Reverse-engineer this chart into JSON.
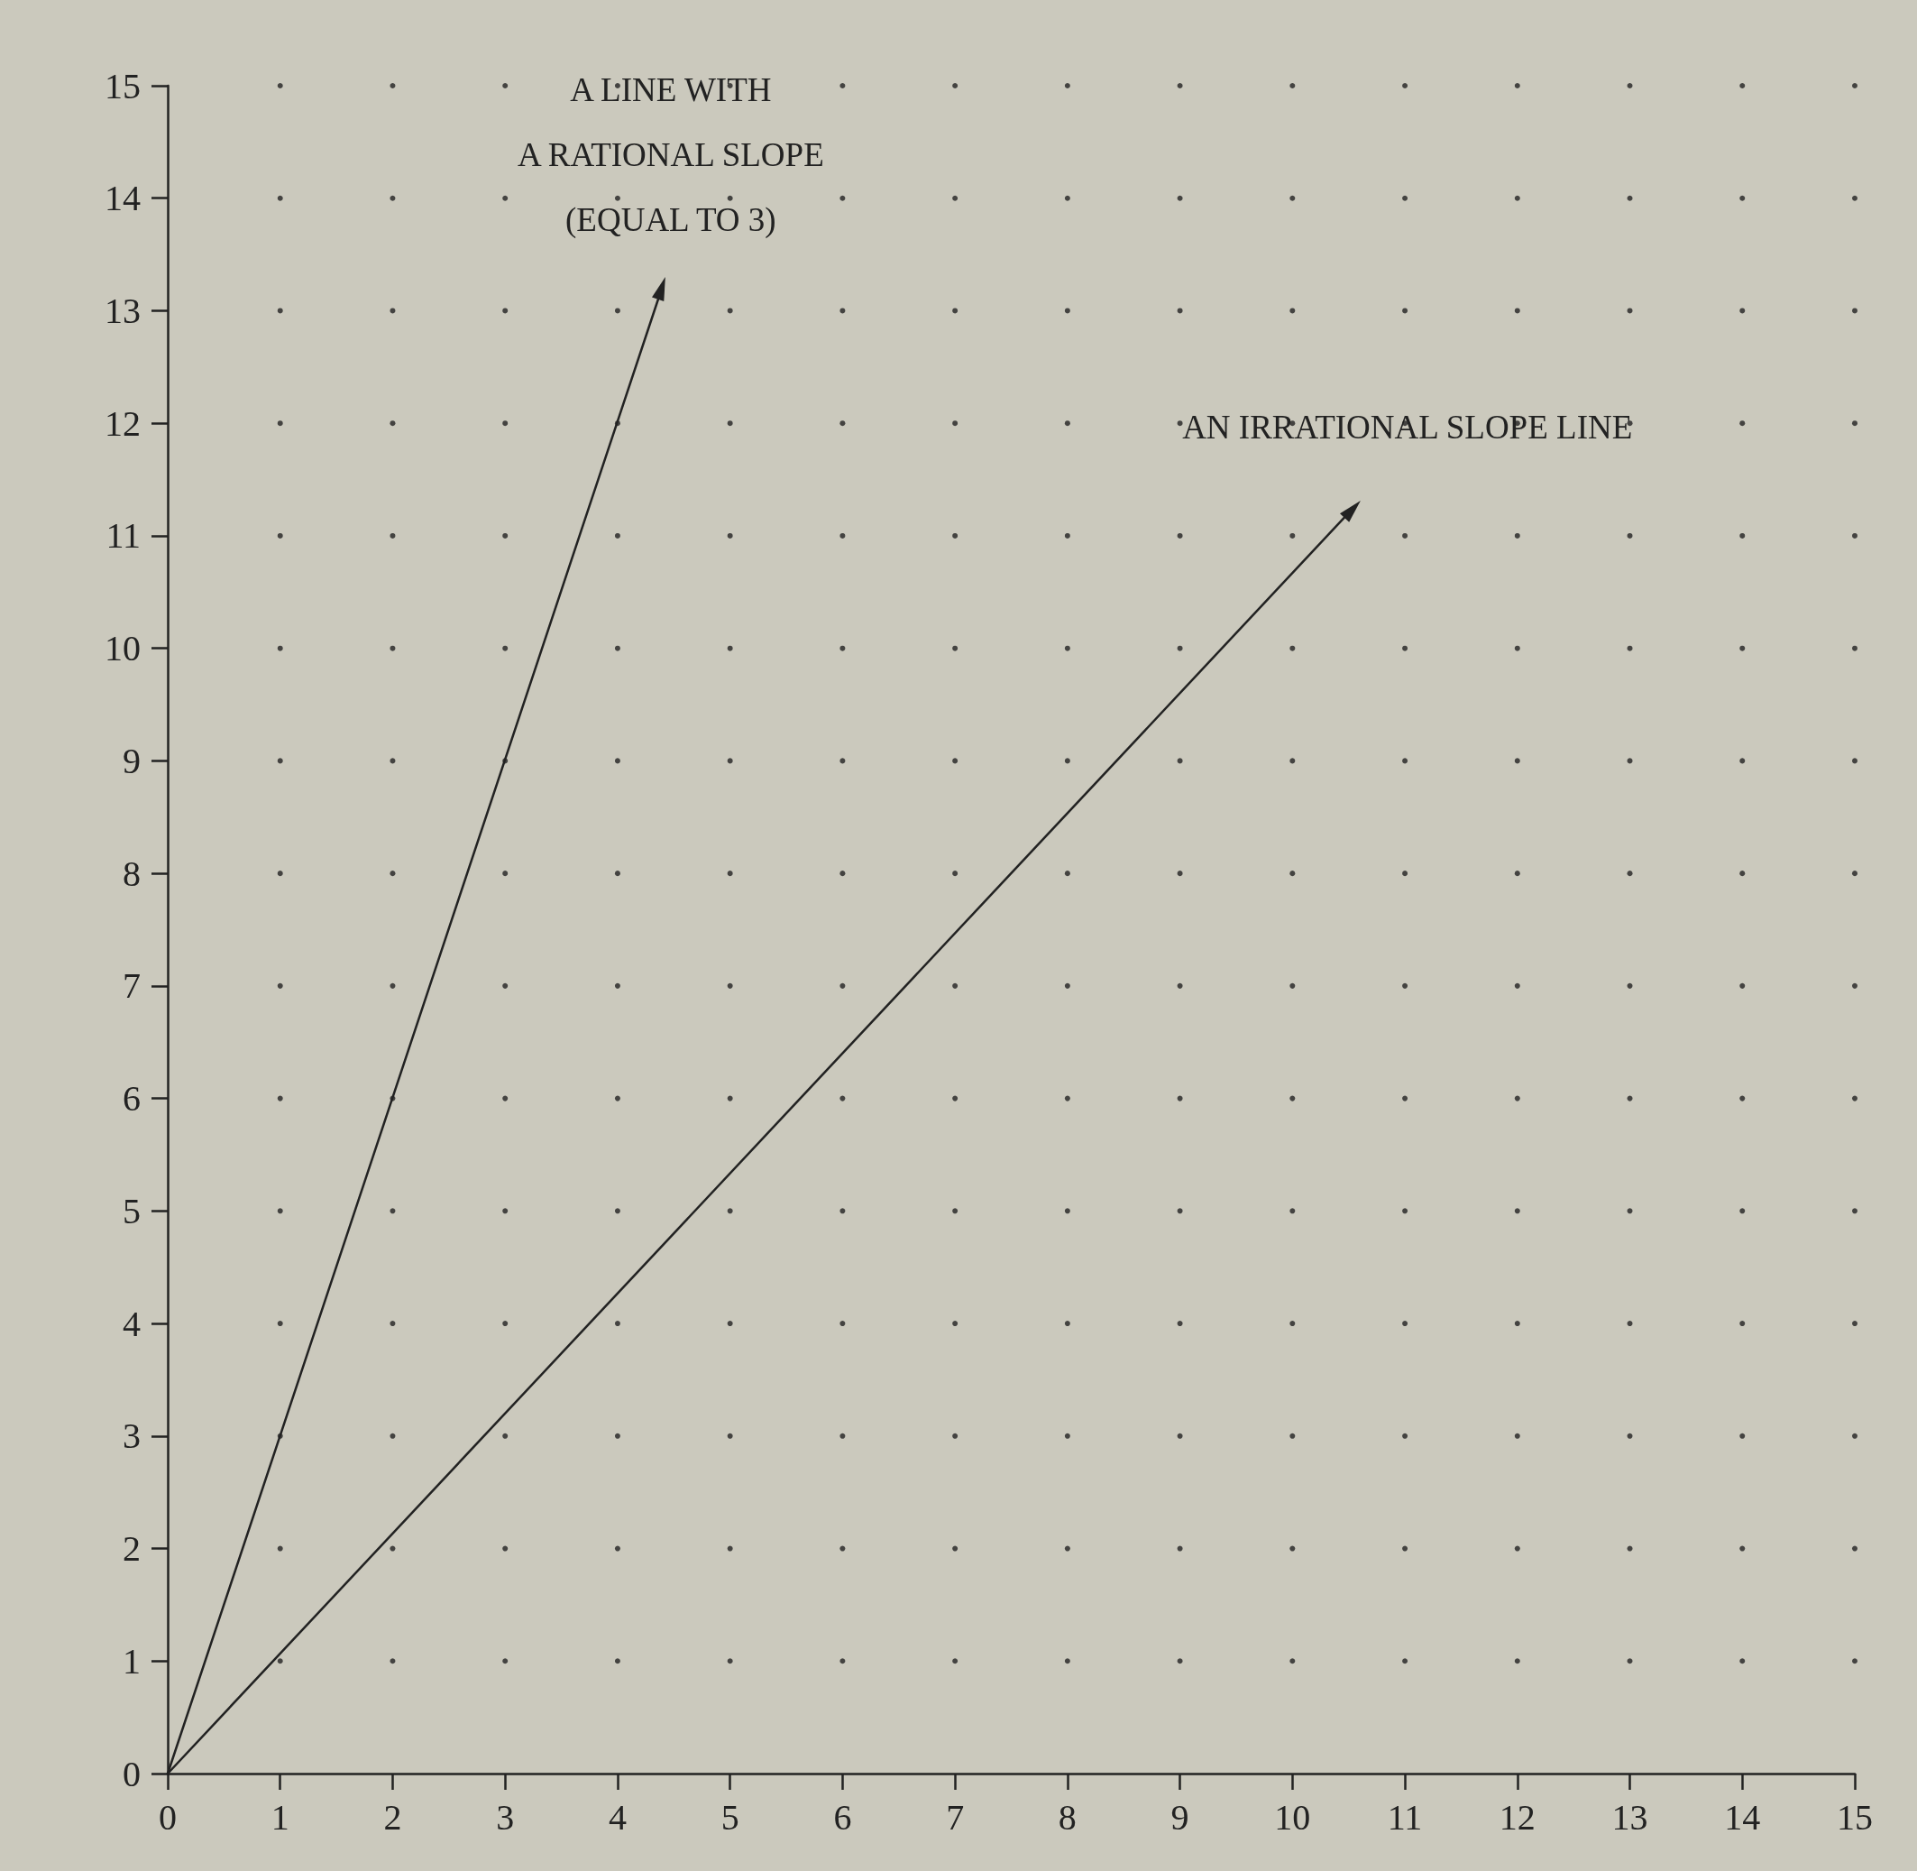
{
  "chart_data": {
    "type": "line",
    "series": [
      {
        "color": "#222222",
        "x": [
          0,
          4.36
        ],
        "values": [
          0,
          13.1
        ]
      },
      {
        "color": "#222222",
        "x": [
          0,
          10.46
        ],
        "values": [
          0,
          11.16
        ]
      },
      {
        "type": "scatter",
        "color": "#222222",
        "x": [
          1,
          2,
          3,
          4,
          5,
          6,
          7,
          8,
          9,
          10,
          11,
          12,
          13,
          14,
          15,
          1,
          2,
          3,
          4,
          5,
          6,
          7,
          8,
          9,
          10,
          11,
          12,
          13,
          14,
          15,
          1,
          2,
          3,
          4,
          5,
          6,
          7,
          8,
          9,
          10,
          11,
          12,
          13,
          14,
          15,
          1,
          2,
          3,
          4,
          5,
          6,
          7,
          8,
          9,
          10,
          11,
          12,
          13,
          14,
          15,
          1,
          2,
          3,
          4,
          5,
          6,
          7,
          8,
          9,
          10,
          11,
          12,
          13,
          14,
          15,
          1,
          2,
          3,
          4,
          5,
          6,
          7,
          8,
          9,
          10,
          11,
          12,
          13,
          14,
          15,
          1,
          2,
          3,
          4,
          5,
          6,
          7,
          8,
          9,
          10,
          11,
          12,
          13,
          14,
          15,
          1,
          2,
          3,
          4,
          5,
          6,
          7,
          8,
          9,
          10,
          11,
          12,
          13,
          14,
          15,
          1,
          2,
          3,
          4,
          5,
          6,
          7,
          8,
          9,
          10,
          11,
          12,
          13,
          14,
          15,
          1,
          2,
          3,
          4,
          5,
          6,
          7,
          8,
          9,
          10,
          11,
          12,
          13,
          14,
          15,
          1,
          2,
          3,
          4,
          5,
          6,
          7,
          8,
          9,
          10,
          11,
          12,
          13,
          14,
          15,
          1,
          2,
          3,
          4,
          5,
          6,
          7,
          8,
          9,
          10,
          11,
          12,
          13,
          14,
          15,
          1,
          2,
          3,
          4,
          5,
          6,
          7,
          8,
          9,
          10,
          11,
          12,
          13,
          14,
          15,
          1,
          2,
          3,
          4,
          5,
          6,
          7,
          8,
          9,
          10,
          11,
          12,
          13,
          14,
          15,
          1,
          2,
          3,
          4,
          5,
          6,
          7,
          8,
          9,
          10,
          11,
          12,
          13,
          14,
          15
        ],
        "values": [
          1,
          1,
          1,
          1,
          1,
          1,
          1,
          1,
          1,
          1,
          1,
          1,
          1,
          1,
          1,
          2,
          2,
          2,
          2,
          2,
          2,
          2,
          2,
          2,
          2,
          2,
          2,
          2,
          2,
          2,
          3,
          3,
          3,
          3,
          3,
          3,
          3,
          3,
          3,
          3,
          3,
          3,
          3,
          3,
          3,
          4,
          4,
          4,
          4,
          4,
          4,
          4,
          4,
          4,
          4,
          4,
          4,
          4,
          4,
          4,
          5,
          5,
          5,
          5,
          5,
          5,
          5,
          5,
          5,
          5,
          5,
          5,
          5,
          5,
          5,
          6,
          6,
          6,
          6,
          6,
          6,
          6,
          6,
          6,
          6,
          6,
          6,
          6,
          6,
          6,
          7,
          7,
          7,
          7,
          7,
          7,
          7,
          7,
          7,
          7,
          7,
          7,
          7,
          7,
          7,
          8,
          8,
          8,
          8,
          8,
          8,
          8,
          8,
          8,
          8,
          8,
          8,
          8,
          8,
          8,
          9,
          9,
          9,
          9,
          9,
          9,
          9,
          9,
          9,
          9,
          9,
          9,
          9,
          9,
          9,
          10,
          10,
          10,
          10,
          10,
          10,
          10,
          10,
          10,
          10,
          10,
          10,
          10,
          10,
          10,
          11,
          11,
          11,
          11,
          11,
          11,
          11,
          11,
          11,
          11,
          11,
          11,
          11,
          11,
          11,
          12,
          12,
          12,
          12,
          12,
          12,
          12,
          12,
          12,
          12,
          12,
          12,
          12,
          12,
          12,
          13,
          13,
          13,
          13,
          13,
          13,
          13,
          13,
          13,
          13,
          13,
          13,
          13,
          13,
          13,
          14,
          14,
          14,
          14,
          14,
          14,
          14,
          14,
          14,
          14,
          14,
          14,
          14,
          14,
          14,
          15,
          15,
          15,
          15,
          15,
          15,
          15,
          15,
          15,
          15,
          15,
          15,
          15,
          15,
          15
        ]
      }
    ],
    "xlim": [
      0,
      15
    ],
    "ylim": [
      0,
      15
    ],
    "xticks": [
      0,
      1,
      2,
      3,
      4,
      5,
      6,
      7,
      8,
      9,
      10,
      11,
      12,
      13,
      14,
      15
    ],
    "yticks": [
      0,
      1,
      2,
      3,
      4,
      5,
      6,
      7,
      8,
      9,
      10,
      11,
      12,
      13,
      14,
      15
    ],
    "annotations": [
      "A LINE WITH\nA RATIONAL SLOPE\n(EQUAL TO 3)",
      "AN IRRATIONAL SLOPE LINE"
    ]
  }
}
